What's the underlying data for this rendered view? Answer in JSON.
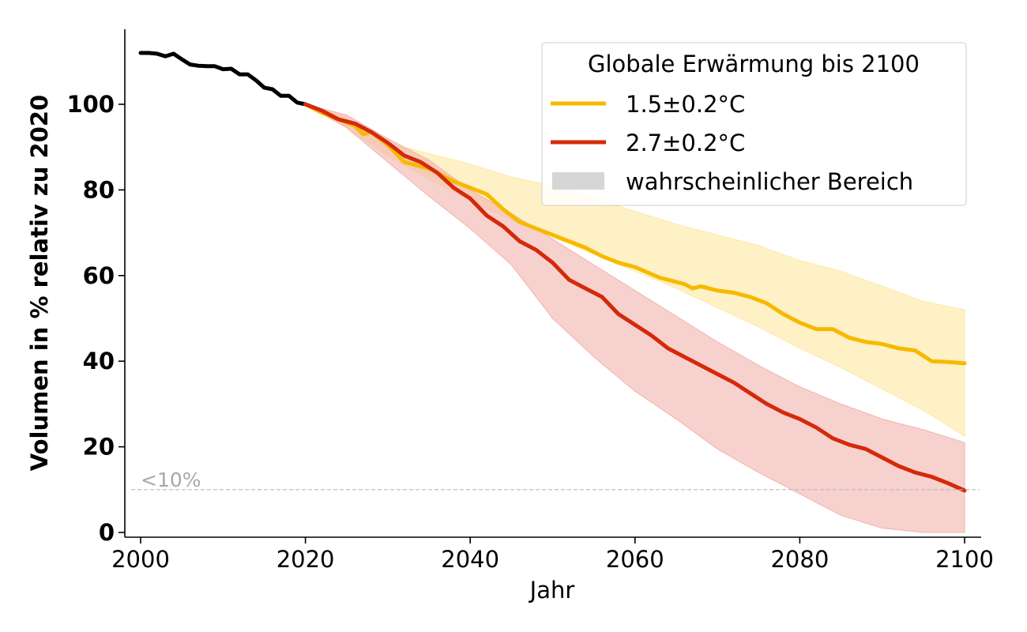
{
  "chart_data": {
    "type": "line",
    "xlabel": "Jahr",
    "ylabel": "Volumen in % relativ zu 2020",
    "xlim": [
      2000,
      2100
    ],
    "ylim": [
      0,
      115
    ],
    "xticks": [
      2000,
      2020,
      2040,
      2060,
      2080,
      2100
    ],
    "yticks": [
      0,
      20,
      40,
      60,
      80,
      100
    ],
    "grid": false,
    "legend": {
      "title": "Globale Erwärmung bis 2100",
      "placement": "top-right",
      "entries": [
        "1.5±0.2°C",
        "2.7±0.2°C",
        "wahrscheinlicher Bereich"
      ]
    },
    "threshold": {
      "y": 10,
      "label": "<10%"
    },
    "colors": {
      "historical": "#000000",
      "s15": "#f7b900",
      "s27": "#d42a0a",
      "band15": "#fde9a6",
      "band27": "#f2b3ad",
      "range": "#d6d6d6",
      "threshold": "#b8b8b8"
    },
    "series": [
      {
        "key": "historical",
        "x": [
          2000,
          2001,
          2002,
          2003,
          2004,
          2005,
          2006,
          2007,
          2008,
          2009,
          2010,
          2011,
          2012,
          2013,
          2014,
          2015,
          2016,
          2017,
          2018,
          2019,
          2020
        ],
        "values": [
          112,
          112,
          111.8,
          111.2,
          111.8,
          110.5,
          109.3,
          109,
          108.9,
          108.9,
          108.2,
          108.3,
          107,
          107,
          105.6,
          103.9,
          103.5,
          102,
          102,
          100.4,
          100
        ]
      },
      {
        "key": "s15",
        "name": "1.5±0.2°C",
        "x": [
          2020,
          2022,
          2024,
          2026,
          2027,
          2028,
          2030,
          2032,
          2035,
          2038,
          2040,
          2042,
          2044,
          2046,
          2048,
          2050,
          2052,
          2054,
          2056,
          2058,
          2060,
          2063,
          2066,
          2067,
          2068,
          2070,
          2072,
          2074,
          2076,
          2078,
          2080,
          2082,
          2084,
          2086,
          2088,
          2090,
          2092,
          2094,
          2096,
          2098,
          2100
        ],
        "values": [
          100,
          98,
          96.5,
          95,
          93,
          93.5,
          90.5,
          86.5,
          85,
          82,
          80.5,
          79,
          75.5,
          72.5,
          71,
          69.5,
          68,
          66.5,
          64.5,
          63,
          62,
          59.5,
          58,
          57,
          57.5,
          56.5,
          56,
          55,
          53.5,
          51,
          49,
          47.5,
          47.5,
          45.5,
          44.5,
          44,
          43,
          42.5,
          40,
          39.8,
          39.5
        ]
      },
      {
        "key": "s27",
        "name": "2.7±0.2°C",
        "x": [
          2020,
          2022,
          2024,
          2026,
          2028,
          2030,
          2032,
          2034,
          2036,
          2038,
          2040,
          2042,
          2044,
          2046,
          2048,
          2050,
          2052,
          2054,
          2056,
          2058,
          2060,
          2062,
          2064,
          2066,
          2068,
          2070,
          2072,
          2074,
          2076,
          2078,
          2080,
          2082,
          2084,
          2086,
          2088,
          2090,
          2092,
          2094,
          2096,
          2098,
          2100
        ],
        "values": [
          100,
          98.5,
          96.5,
          95.5,
          93.5,
          91,
          88,
          86.5,
          84,
          80.5,
          78,
          74,
          71.5,
          68,
          66,
          63,
          59,
          57,
          55,
          51,
          48.5,
          46,
          43,
          41,
          39,
          37,
          35,
          32.5,
          30,
          28,
          26.5,
          24.5,
          22,
          20.5,
          19.5,
          17.5,
          15.5,
          14,
          13,
          11.5,
          9.8
        ]
      }
    ],
    "bands": [
      {
        "key": "band15",
        "x": [
          2020,
          2025,
          2030,
          2035,
          2040,
          2045,
          2050,
          2055,
          2060,
          2065,
          2070,
          2075,
          2080,
          2085,
          2090,
          2095,
          2100
        ],
        "upper": [
          100,
          97,
          91,
          88.5,
          86,
          83,
          81,
          78,
          75,
          72,
          69.5,
          67,
          63.5,
          61,
          57.5,
          54,
          52
        ],
        "lower": [
          100,
          94.5,
          88,
          82.5,
          77.5,
          73,
          69,
          65,
          61,
          57,
          52.5,
          48,
          43,
          38.5,
          33.5,
          28.5,
          22.5
        ]
      },
      {
        "key": "band27",
        "x": [
          2020,
          2025,
          2030,
          2035,
          2040,
          2045,
          2050,
          2055,
          2060,
          2065,
          2070,
          2075,
          2080,
          2085,
          2090,
          2095,
          2100
        ],
        "upper": [
          100,
          97.5,
          92,
          87,
          80,
          74.5,
          68.5,
          62.5,
          56.5,
          50.5,
          44.5,
          39,
          34,
          30,
          26.5,
          24,
          21
        ],
        "lower": [
          100,
          94.5,
          86.5,
          78.5,
          71,
          62.5,
          50,
          41,
          33,
          26.5,
          19.5,
          14,
          9,
          4,
          1,
          0,
          0
        ]
      }
    ]
  }
}
